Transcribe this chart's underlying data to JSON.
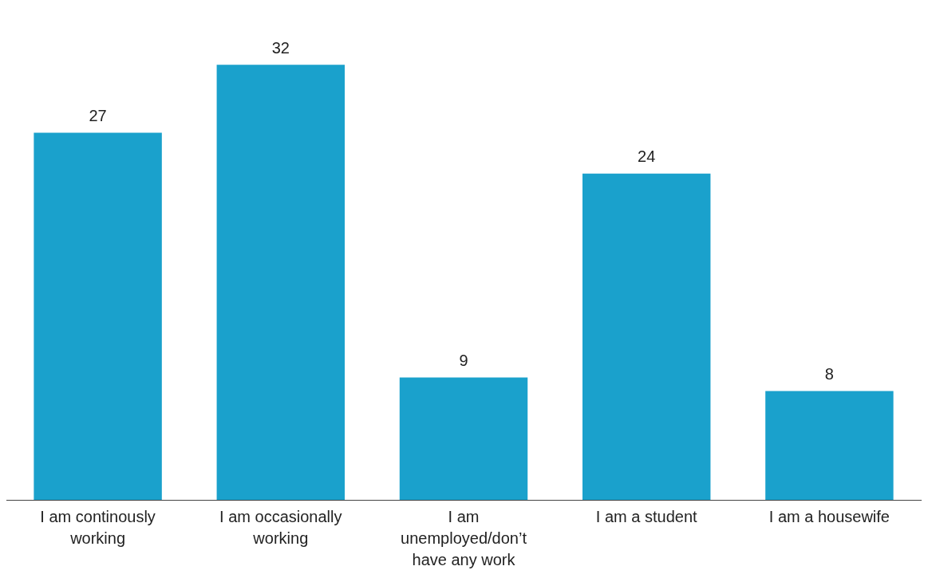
{
  "chart_data": {
    "type": "bar",
    "categories": [
      "I am continously working",
      "I am occasionally working",
      "I am unemployed/don’t have any work",
      "I am a student",
      "I am a housewife"
    ],
    "values": [
      27,
      32,
      9,
      24,
      8
    ],
    "color": "#1aa1cc",
    "tick_labels": "x",
    "grid": false,
    "legend": false,
    "data_labels": true
  }
}
